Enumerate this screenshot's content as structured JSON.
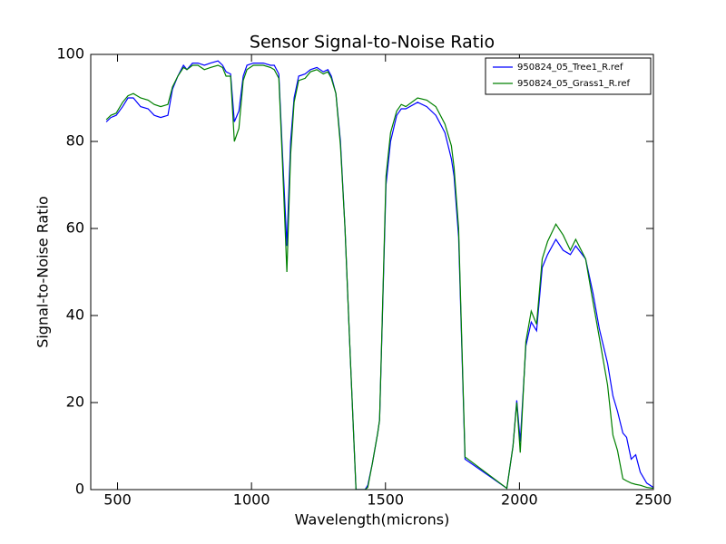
{
  "chart_data": {
    "type": "line",
    "title": "Sensor Signal-to-Noise Ratio",
    "x_label": "Wavelength(microns)",
    "y_label": "Signal-to-Noise Ratio",
    "x": [
      458,
      475,
      495,
      519,
      539,
      559,
      586,
      614,
      637,
      661,
      688,
      705,
      725,
      746,
      759,
      780,
      800,
      824,
      847,
      875,
      892,
      905,
      922,
      936,
      953,
      969,
      983,
      1007,
      1044,
      1071,
      1085,
      1102,
      1115,
      1132,
      1146,
      1159,
      1176,
      1200,
      1220,
      1244,
      1268,
      1285,
      1298,
      1315,
      1332,
      1349,
      1369,
      1390,
      1424,
      1434,
      1451,
      1471,
      1478,
      1502,
      1519,
      1542,
      1559,
      1576,
      1620,
      1654,
      1688,
      1722,
      1746,
      1756,
      1773,
      1797,
      1953,
      1976,
      1990,
      2003,
      2024,
      2044,
      2064,
      2085,
      2105,
      2136,
      2163,
      2190,
      2210,
      2247,
      2275,
      2298,
      2329,
      2349,
      2366,
      2386,
      2400,
      2417,
      2434,
      2451,
      2475,
      2500
    ],
    "series": [
      {
        "name": "950824_05_Tree1_R.ref",
        "color": "#0000ff",
        "values": [
          84.5,
          85.5,
          86,
          88,
          90,
          90,
          88,
          87.5,
          86,
          85.5,
          86,
          92,
          95,
          97.5,
          96.5,
          98,
          98,
          97.5,
          98,
          98.5,
          97.5,
          96,
          95.5,
          84.5,
          87,
          95,
          97.5,
          98,
          98,
          97.5,
          97.5,
          95.5,
          78,
          56,
          80,
          90,
          95,
          95.5,
          96.5,
          97,
          96,
          96.5,
          95,
          91,
          80,
          60,
          30,
          0,
          0,
          1,
          6,
          13,
          16,
          70,
          80,
          86,
          87.5,
          87.5,
          89,
          88,
          86,
          82,
          76,
          72,
          58,
          7,
          0.3,
          10,
          20.5,
          11,
          33,
          38.5,
          36.5,
          51,
          54,
          57.5,
          55,
          54,
          56,
          53,
          45,
          37,
          29,
          21.5,
          18,
          13,
          12,
          7,
          8,
          4,
          1.5,
          0.5
        ]
      },
      {
        "name": "950824_05_Grass1_R.ref",
        "color": "#008000",
        "values": [
          85,
          86,
          86.5,
          89,
          90.5,
          91,
          90,
          89.5,
          88.5,
          88,
          88.5,
          92.5,
          95,
          97,
          96.5,
          97.5,
          97.5,
          96.5,
          97,
          97.5,
          97,
          95,
          95,
          80,
          83,
          94,
          96.5,
          97.5,
          97.5,
          97,
          96.5,
          94.5,
          76,
          50,
          77,
          89,
          94,
          94.5,
          96,
          96.5,
          95.5,
          96,
          94.5,
          91,
          79,
          60,
          30,
          0,
          0,
          0.5,
          6,
          13,
          16,
          72,
          82,
          87,
          88.5,
          88,
          90,
          89.5,
          88,
          84,
          79,
          74,
          60,
          7.5,
          0.3,
          10,
          20,
          8.5,
          34,
          41,
          38,
          53,
          57,
          61,
          58.5,
          55,
          57.5,
          53,
          43,
          35,
          24,
          12.5,
          9,
          2.5,
          2,
          1.5,
          1.2,
          1,
          0.5,
          0.3
        ]
      }
    ],
    "xlim": [
      400,
      2500
    ],
    "xticks": [
      500,
      1000,
      1500,
      2000,
      2500
    ],
    "ylim": [
      0,
      100
    ],
    "yticks": [
      0,
      20,
      40,
      60,
      80,
      100
    ],
    "grid": false,
    "legend": "upper right"
  }
}
